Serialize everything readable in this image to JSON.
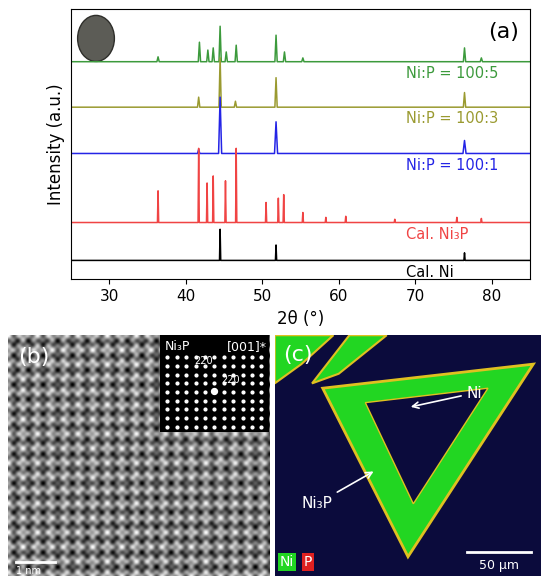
{
  "chart_data": {
    "type": "line",
    "panel_label": "(a)",
    "x_label": "2θ (°)",
    "y_label": "Intensity (a.u.)",
    "xlim": [
      25,
      85
    ],
    "xticks": [
      30,
      40,
      50,
      60,
      70,
      80
    ],
    "ylim": [
      0,
      100
    ],
    "tick_labels": "x",
    "series": [
      {
        "name": "Ni:P = 100:5",
        "color": "#3c9a3c",
        "x": [
          25,
          36.25,
          36.4,
          36.55,
          41.65,
          41.8,
          41.95,
          42.75,
          42.9,
          43.05,
          43.45,
          43.6,
          43.75,
          44.35,
          44.5,
          44.65,
          45.15,
          45.3,
          45.45,
          46.45,
          46.6,
          46.75,
          51.65,
          51.8,
          51.95,
          52.75,
          52.9,
          53.05,
          55.15,
          55.3,
          55.45,
          76.25,
          76.4,
          76.55,
          78.45,
          78.6,
          78.75,
          85
        ],
        "values": [
          80.4,
          80.4,
          82.2,
          80.4,
          80.4,
          87.6,
          80.4,
          80.4,
          84.7,
          80.4,
          80.4,
          85.5,
          80.4,
          80.4,
          93.5,
          80.4,
          80.4,
          84,
          80.4,
          80.4,
          86.5,
          80.4,
          80.4,
          90.2,
          80.4,
          80.4,
          84,
          80.4,
          80.4,
          81.8,
          80.4,
          80.4,
          85.5,
          80.4,
          80.4,
          81.8,
          80.4,
          80.4
        ]
      },
      {
        "name": "Ni:P = 100:3",
        "color": "#9a9a30",
        "x": [
          25,
          41.55,
          41.7,
          41.85,
          44.35,
          44.5,
          44.65,
          46.35,
          46.5,
          46.65,
          51.65,
          51.8,
          51.95,
          76.25,
          76.4,
          76.55,
          85
        ],
        "values": [
          63.6,
          63.6,
          67.3,
          63.6,
          63.6,
          81.8,
          63.6,
          63.6,
          65.8,
          63.6,
          63.6,
          74.5,
          63.6,
          63.6,
          69,
          63.6,
          63.6
        ]
      },
      {
        "name": "Ni:P = 100:1",
        "color": "#2424e6",
        "x": [
          25,
          41.55,
          41.7,
          41.85,
          44.3,
          44.5,
          44.7,
          51.6,
          51.8,
          52.0,
          76.2,
          76.4,
          76.6,
          85
        ],
        "values": [
          46.5,
          46.5,
          48,
          46.5,
          46.5,
          67.3,
          46.5,
          46.5,
          58.2,
          46.5,
          46.5,
          51.3,
          46.5,
          46.5
        ]
      },
      {
        "name": "Cal. Ni₃P",
        "color": "#f04444",
        "x": [
          25,
          36.32,
          36.4,
          36.48,
          41.62,
          41.7,
          41.78,
          42.72,
          42.8,
          42.88,
          43.52,
          43.6,
          43.68,
          45.12,
          45.2,
          45.28,
          46.52,
          46.6,
          46.68,
          50.42,
          50.5,
          50.58,
          52.02,
          52.1,
          52.18,
          52.72,
          52.8,
          52.88,
          55.22,
          55.3,
          55.38,
          58.22,
          58.3,
          58.38,
          60.82,
          60.9,
          60.98,
          67.22,
          67.3,
          67.38,
          75.32,
          75.4,
          75.48,
          78.52,
          78.6,
          78.68,
          85
        ],
        "values": [
          21,
          21,
          32.7,
          21,
          21,
          48.4,
          21,
          21,
          35.6,
          21,
          21,
          38.2,
          21,
          21,
          36.4,
          21,
          21,
          48.4,
          21,
          21,
          28.4,
          21,
          21,
          30,
          21,
          21,
          31.3,
          21,
          21,
          24.7,
          21,
          21,
          22.9,
          21,
          21,
          23.3,
          21,
          21,
          22.2,
          21,
          21,
          22.9,
          21,
          21,
          22.5,
          21,
          21
        ]
      },
      {
        "name": "Cal. Ni",
        "color": "#000000",
        "x": [
          25,
          44.42,
          44.5,
          44.58,
          51.72,
          51.8,
          51.88,
          76.32,
          76.4,
          76.48,
          85
        ],
        "values": [
          7,
          7,
          18.5,
          7,
          7,
          12.7,
          7,
          7,
          9.8,
          7,
          7
        ]
      }
    ]
  },
  "panel_b": {
    "label": "(b)",
    "inset": {
      "phase": "Ni₃P",
      "zone_axis": "[001]*",
      "spots": [
        "220",
        "220"
      ]
    },
    "scale_bar": "1 nm"
  },
  "panel_c": {
    "label": "(c)",
    "annotations": [
      "Ni",
      "Ni₃P"
    ],
    "channels": [
      {
        "name": "Ni",
        "color": "#22d622"
      },
      {
        "name": "P",
        "color": "#e02020"
      }
    ],
    "scale_bar": "50 μm"
  }
}
